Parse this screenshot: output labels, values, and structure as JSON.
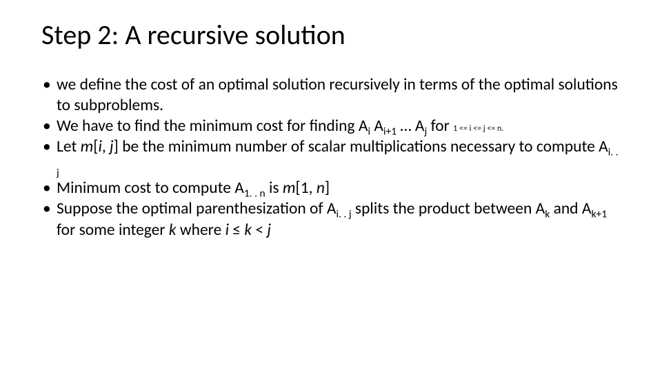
{
  "slide": {
    "title": "Step 2: A recursive solution",
    "title_fontsize": 40,
    "body_fontsize": 23.5,
    "text_color": "#000000",
    "background_color": "#ffffff",
    "font_family": "Calibri",
    "bullets": [
      {
        "parts": [
          {
            "t": "we define the cost of an optimal solution recursively in terms of the optimal solutions to subproblems."
          }
        ]
      },
      {
        "parts": [
          {
            "t": "We have to find the minimum cost for finding A"
          },
          {
            "t": "i",
            "sub": true
          },
          {
            "t": " A"
          },
          {
            "t": "i+1",
            "sub": true
          },
          {
            "t": " … A"
          },
          {
            "t": "j",
            "sub": true
          },
          {
            "t": " for "
          },
          {
            "t": "1 <= i <= j <= n.",
            "small": true
          }
        ]
      },
      {
        "parts": [
          {
            "t": "Let "
          },
          {
            "t": "m",
            "ital": true
          },
          {
            "t": "["
          },
          {
            "t": "i",
            "ital": true
          },
          {
            "t": ", "
          },
          {
            "t": "j",
            "ital": true
          },
          {
            "t": "] be the minimum number of scalar multiplications necessary to compute A"
          },
          {
            "t": "i. . j",
            "sub": true
          }
        ]
      },
      {
        "parts": [
          {
            "t": "Minimum cost to compute A"
          },
          {
            "t": "1. . n",
            "sub": true
          },
          {
            "t": " is "
          },
          {
            "t": "m",
            "ital": true
          },
          {
            "t": "[1, "
          },
          {
            "t": "n",
            "ital": true
          },
          {
            "t": "]"
          }
        ]
      },
      {
        "parts": [
          {
            "t": "Suppose the optimal parenthesization of A"
          },
          {
            "t": "i. . j",
            "sub": true
          },
          {
            "t": " splits the product between A"
          },
          {
            "t": "k",
            "sub": true
          },
          {
            "t": " and A"
          },
          {
            "t": "k+1",
            "sub": true
          },
          {
            "t": " for some integer "
          },
          {
            "t": "k",
            "ital": true
          },
          {
            "t": " where "
          },
          {
            "t": "i ",
            "ital": true
          },
          {
            "t": "≤ "
          },
          {
            "t": "k",
            "ital": true
          },
          {
            "t": " < "
          },
          {
            "t": "j",
            "ital": true
          }
        ]
      }
    ]
  }
}
